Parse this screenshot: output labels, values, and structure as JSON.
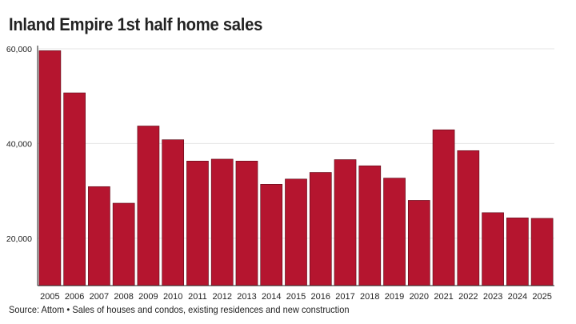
{
  "header": {
    "title": "Inland Empire 1st half home sales"
  },
  "footer": {
    "source": "Source: Attom • Sales of houses and condos, existing residences and new construction"
  },
  "chart_data": {
    "type": "bar",
    "title": "Inland Empire 1st half home sales",
    "xlabel": "",
    "ylabel": "",
    "categories": [
      "2005",
      "2006",
      "2007",
      "2008",
      "2009",
      "2010",
      "2011",
      "2012",
      "2013",
      "2014",
      "2015",
      "2016",
      "2017",
      "2018",
      "2019",
      "2020",
      "2021",
      "2022",
      "2023",
      "2024",
      "2025"
    ],
    "values": [
      59600,
      50700,
      30900,
      27400,
      43700,
      40800,
      36300,
      36700,
      36300,
      31400,
      32500,
      33900,
      36600,
      35300,
      32700,
      28000,
      42900,
      38500,
      25400,
      24300,
      24200
    ],
    "y_ticks": [
      {
        "value": 20000,
        "label": "20,000"
      },
      {
        "value": 40000,
        "label": "40,000"
      },
      {
        "value": 60000,
        "label": "60,000"
      }
    ],
    "ylim": [
      10000,
      60000
    ],
    "grid": true,
    "bar_color": "#b5152f",
    "grid_color": "#e6e6e6"
  }
}
